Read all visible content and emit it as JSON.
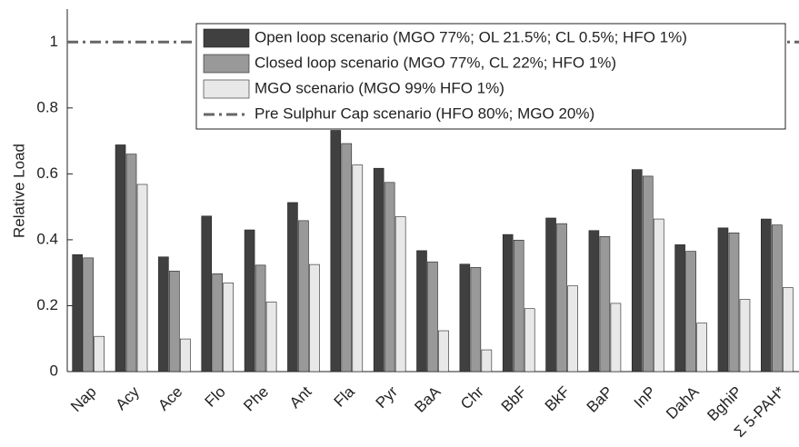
{
  "chart_data": {
    "type": "bar",
    "ylabel": "Relative Load",
    "categories": [
      "Nap",
      "Acy",
      "Ace",
      "Flo",
      "Phe",
      "Ant",
      "Fla",
      "Pyr",
      "BaA",
      "Chr",
      "BbF",
      "BkF",
      "BaP",
      "InP",
      "DahA",
      "BghiP",
      "Σ 5-PAH*"
    ],
    "series": [
      {
        "name": "Open loop scenario (MGO 77%; OL 21.5%; CL 0.5%; HFO 1%)",
        "color": "#404040",
        "values": [
          0.355,
          0.688,
          0.348,
          0.472,
          0.43,
          0.513,
          0.732,
          0.617,
          0.367,
          0.326,
          0.416,
          0.466,
          0.428,
          0.613,
          0.385,
          0.436,
          0.463
        ]
      },
      {
        "name": "Closed loop scenario (MGO 77%, CL 22%; HFO 1%)",
        "color": "#999999",
        "values": [
          0.345,
          0.66,
          0.305,
          0.297,
          0.323,
          0.458,
          0.692,
          0.574,
          0.333,
          0.316,
          0.399,
          0.449,
          0.41,
          0.593,
          0.365,
          0.421,
          0.445
        ]
      },
      {
        "name": "MGO scenario (MGO 99% HFO 1%)",
        "color": "#e8e8e8",
        "values": [
          0.107,
          0.568,
          0.099,
          0.269,
          0.211,
          0.325,
          0.627,
          0.47,
          0.124,
          0.066,
          0.191,
          0.26,
          0.207,
          0.463,
          0.147,
          0.219,
          0.255
        ]
      }
    ],
    "reference_lines": [
      {
        "name": "Pre Sulphur Cap scenario (HFO 80%; MGO 20%)",
        "value": 1,
        "color": "#666666"
      }
    ],
    "ylim": [
      0,
      1.1
    ],
    "yticks": [
      0,
      0.2,
      0.4,
      0.6,
      0.8,
      1
    ],
    "legend": "top-right"
  }
}
